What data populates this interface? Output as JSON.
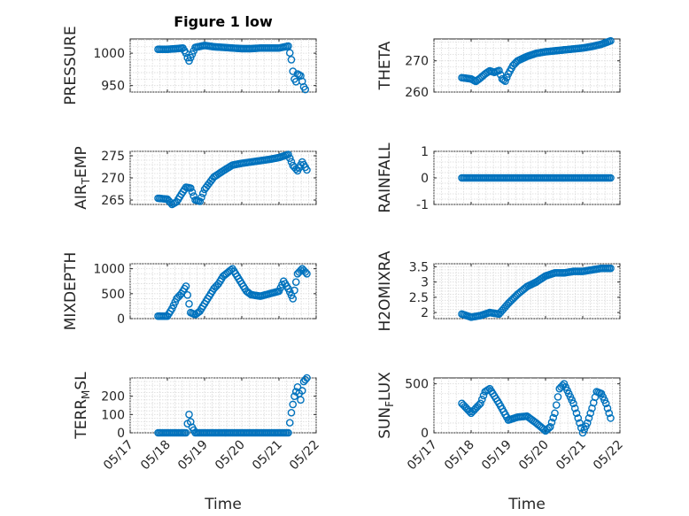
{
  "figure": {
    "title": "Figure 1 low",
    "marker_color": "#0072BD",
    "x_axis": {
      "label": "Time",
      "range": [
        "05/17",
        "05/22"
      ],
      "ticks": [
        "05/17",
        "05/18",
        "05/19",
        "05/20",
        "05/21",
        "05/22"
      ]
    }
  },
  "chart_data": [
    {
      "id": "pressure",
      "type": "scatter",
      "ylabel": "PRESSURE",
      "ylim": [
        940,
        1022
      ],
      "yticks": [
        950,
        1000
      ],
      "title": "Figure 1 low",
      "grid": true,
      "x": [
        "05/17 18:00",
        "05/18 00:00",
        "05/18 06:00",
        "05/18 10:00",
        "05/18 12:00",
        "05/18 13:00",
        "05/18 14:00",
        "05/18 18:00",
        "05/19 00:00",
        "05/19 06:00",
        "05/19 12:00",
        "05/19 18:00",
        "05/20 00:00",
        "05/20 06:00",
        "05/20 12:00",
        "05/20 18:00",
        "05/21 00:00",
        "05/21 04:00",
        "05/21 06:00",
        "05/21 08:00",
        "05/21 09:00",
        "05/21 10:00",
        "05/21 11:00",
        "05/21 12:00",
        "05/21 14:00",
        "05/21 16:00",
        "05/21 17:00"
      ],
      "y": [
        1006,
        1006,
        1007,
        1008,
        1000,
        993,
        988,
        1009,
        1012,
        1010,
        1009,
        1008,
        1007,
        1007,
        1008,
        1008,
        1008,
        1010,
        1011,
        990,
        972,
        960,
        956,
        968,
        965,
        948,
        944
      ]
    },
    {
      "id": "theta",
      "type": "scatter",
      "ylabel": "THETA",
      "ylim": [
        260,
        277
      ],
      "yticks": [
        260,
        270
      ],
      "grid": true,
      "x": [
        "05/17 18:00",
        "05/18 00:00",
        "05/18 03:00",
        "05/18 06:00",
        "05/18 09:00",
        "05/18 12:00",
        "05/18 15:00",
        "05/18 18:00",
        "05/18 20:00",
        "05/18 22:00",
        "05/19 00:00",
        "05/19 03:00",
        "05/19 06:00",
        "05/19 12:00",
        "05/19 18:00",
        "05/20 00:00",
        "05/20 06:00",
        "05/20 12:00",
        "05/20 18:00",
        "05/21 00:00",
        "05/21 06:00",
        "05/21 12:00",
        "05/21 18:00"
      ],
      "y": [
        264.6,
        264.2,
        263.4,
        264.5,
        265.8,
        266.8,
        266.3,
        266.9,
        264.2,
        263.5,
        265.8,
        268.5,
        270.0,
        271.4,
        272.4,
        272.9,
        273.2,
        273.5,
        273.8,
        274.1,
        274.6,
        275.3,
        276.4
      ]
    },
    {
      "id": "air_temp",
      "type": "scatter",
      "ylabel": "AIR_TEMP",
      "ylabel_parts": [
        "AIR",
        "T",
        "EMP"
      ],
      "ylim": [
        264,
        276
      ],
      "yticks": [
        265,
        270,
        275
      ],
      "grid": true,
      "x": [
        "05/17 18:00",
        "05/18 00:00",
        "05/18 03:00",
        "05/18 06:00",
        "05/18 09:00",
        "05/18 12:00",
        "05/18 15:00",
        "05/18 18:00",
        "05/18 21:00",
        "05/19 00:00",
        "05/19 06:00",
        "05/19 12:00",
        "05/19 18:00",
        "05/20 00:00",
        "05/20 06:00",
        "05/20 12:00",
        "05/20 18:00",
        "05/21 00:00",
        "05/21 06:00",
        "05/21 09:00",
        "05/21 12:00",
        "05/21 15:00",
        "05/21 18:00"
      ],
      "y": [
        265.4,
        265.2,
        264.0,
        264.6,
        266.3,
        267.9,
        267.7,
        265.0,
        264.7,
        267.4,
        270.2,
        271.6,
        272.9,
        273.3,
        273.6,
        273.9,
        274.2,
        274.6,
        275.3,
        272.8,
        271.6,
        273.6,
        271.8
      ]
    },
    {
      "id": "rainfall",
      "type": "scatter",
      "ylabel": "RAINFALL",
      "ylim": [
        -1,
        1
      ],
      "yticks": [
        -1,
        0,
        1
      ],
      "grid": true,
      "x": [
        "05/17 18:00",
        "05/18 00:00",
        "05/18 06:00",
        "05/18 12:00",
        "05/18 18:00",
        "05/19 00:00",
        "05/19 06:00",
        "05/19 12:00",
        "05/19 18:00",
        "05/20 00:00",
        "05/20 06:00",
        "05/20 12:00",
        "05/20 18:00",
        "05/21 00:00",
        "05/21 06:00",
        "05/21 12:00",
        "05/21 18:00"
      ],
      "y": [
        0,
        0,
        0,
        0,
        0,
        0,
        0,
        0,
        0,
        0,
        0,
        0,
        0,
        0,
        0,
        0,
        0
      ]
    },
    {
      "id": "mixdepth",
      "type": "scatter",
      "ylabel": "MIXDEPTH",
      "ylim": [
        0,
        1100
      ],
      "yticks": [
        0,
        500,
        1000
      ],
      "grid": true,
      "x": [
        "05/17 18:00",
        "05/18 00:00",
        "05/18 03:00",
        "05/18 06:00",
        "05/18 09:00",
        "05/18 12:00",
        "05/18 15:00",
        "05/18 18:00",
        "05/18 21:00",
        "05/19 00:00",
        "05/19 03:00",
        "05/19 06:00",
        "05/19 09:00",
        "05/19 12:00",
        "05/19 18:00",
        "05/20 00:00",
        "05/20 03:00",
        "05/20 06:00",
        "05/20 12:00",
        "05/20 18:00",
        "05/21 00:00",
        "05/21 03:00",
        "05/21 06:00",
        "05/21 09:00",
        "05/21 12:00",
        "05/21 15:00",
        "05/21 18:00"
      ],
      "y": [
        50,
        50,
        200,
        400,
        500,
        650,
        120,
        80,
        150,
        300,
        450,
        600,
        700,
        850,
        1000,
        700,
        550,
        480,
        450,
        500,
        550,
        750,
        600,
        400,
        900,
        1000,
        900
      ]
    },
    {
      "id": "h2omixra",
      "type": "scatter",
      "ylabel": "H2OMIXRA",
      "ylim": [
        1.8,
        3.6
      ],
      "yticks": [
        2,
        2.5,
        3,
        3.5
      ],
      "grid": true,
      "x": [
        "05/17 18:00",
        "05/18 00:00",
        "05/18 06:00",
        "05/18 12:00",
        "05/18 18:00",
        "05/19 00:00",
        "05/19 06:00",
        "05/19 12:00",
        "05/19 18:00",
        "05/20 00:00",
        "05/20 06:00",
        "05/20 12:00",
        "05/20 18:00",
        "05/21 00:00",
        "05/21 06:00",
        "05/21 12:00",
        "05/21 18:00"
      ],
      "y": [
        1.95,
        1.85,
        1.9,
        2.0,
        1.95,
        2.3,
        2.6,
        2.85,
        3.0,
        3.2,
        3.3,
        3.3,
        3.35,
        3.35,
        3.4,
        3.45,
        3.45
      ]
    },
    {
      "id": "terr_msl",
      "type": "scatter",
      "ylabel": "TERR_MSL",
      "ylabel_parts": [
        "TERR",
        "M",
        "SL"
      ],
      "ylim": [
        0,
        300
      ],
      "yticks": [
        0,
        100,
        200
      ],
      "grid": true,
      "x": [
        "05/17 18:00",
        "05/18 00:00",
        "05/18 06:00",
        "05/18 12:00",
        "05/18 14:00",
        "05/18 15:00",
        "05/18 16:00",
        "05/18 18:00",
        "05/19 00:00",
        "05/19 06:00",
        "05/19 12:00",
        "05/19 18:00",
        "05/20 00:00",
        "05/20 06:00",
        "05/20 12:00",
        "05/20 18:00",
        "05/21 00:00",
        "05/21 06:00",
        "05/21 08:00",
        "05/21 10:00",
        "05/21 12:00",
        "05/21 14:00",
        "05/21 16:00",
        "05/21 18:00"
      ],
      "y": [
        0,
        0,
        0,
        0,
        100,
        60,
        30,
        0,
        0,
        0,
        0,
        0,
        0,
        0,
        0,
        0,
        0,
        0,
        110,
        200,
        250,
        180,
        280,
        300
      ]
    },
    {
      "id": "sun_flux",
      "type": "scatter",
      "ylabel": "SUN_FLUX",
      "ylabel_parts": [
        "SUN",
        "F",
        "LUX"
      ],
      "ylim": [
        0,
        560
      ],
      "yticks": [
        0,
        500
      ],
      "grid": true,
      "x": [
        "05/17 18:00",
        "05/18 00:00",
        "05/18 06:00",
        "05/18 09:00",
        "05/18 12:00",
        "05/18 18:00",
        "05/19 00:00",
        "05/19 06:00",
        "05/19 12:00",
        "05/19 18:00",
        "05/20 00:00",
        "05/20 03:00",
        "05/20 06:00",
        "05/20 09:00",
        "05/20 12:00",
        "05/20 18:00",
        "05/21 00:00",
        "05/21 03:00",
        "05/21 06:00",
        "05/21 09:00",
        "05/21 12:00",
        "05/21 15:00",
        "05/21 18:00"
      ],
      "y": [
        300,
        200,
        300,
        420,
        450,
        300,
        130,
        160,
        170,
        100,
        20,
        60,
        200,
        450,
        500,
        300,
        0,
        100,
        250,
        420,
        400,
        300,
        150
      ]
    }
  ]
}
